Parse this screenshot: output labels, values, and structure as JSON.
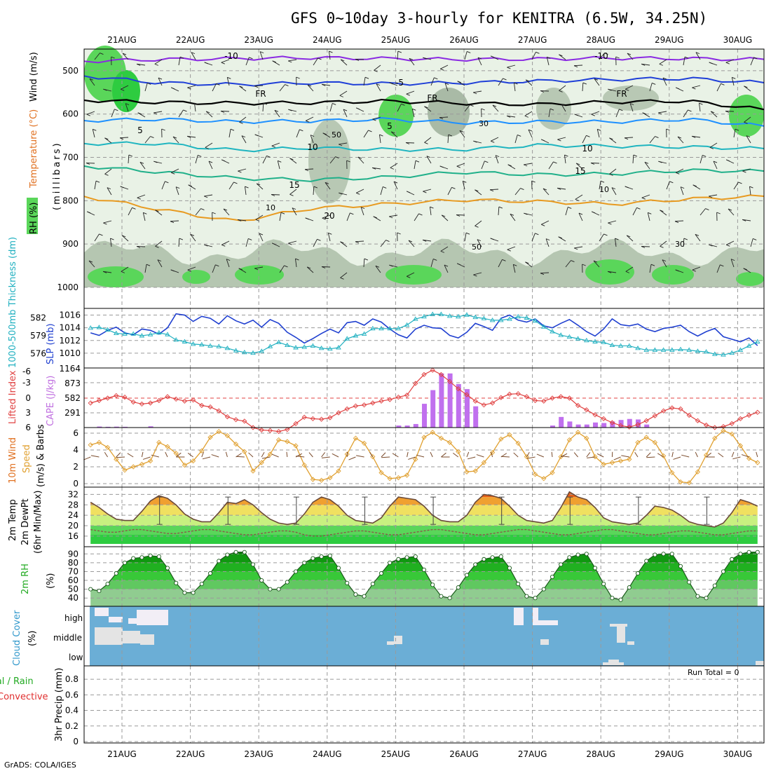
{
  "title": "GFS 0~10day 3-hourly for KENITRA (6.5W, 34.25N)",
  "credit": "GrADS: COLA/IGES",
  "chart_data": {
    "type": "meteogram",
    "x_labels": [
      "21AUG",
      "22AUG",
      "23AUG",
      "24AUG",
      "25AUG",
      "26AUG",
      "27AUG",
      "28AUG",
      "29AUG",
      "30AUG"
    ],
    "panels": [
      {
        "id": "upper-air",
        "ylabel_lines": [
          {
            "text": "Wind (m/s)",
            "color": "#000000"
          },
          {
            "text": "Temperature (°C)",
            "color": "#e07020"
          },
          {
            "text": "(millibars)",
            "color": "#000000"
          }
        ],
        "rh_legend": "RH (%)",
        "y_ticks": [
          500,
          600,
          700,
          800,
          900,
          1000
        ],
        "ylim": [
          1000,
          450
        ],
        "isotherm_labels": [
          "-10",
          "-5",
          "FR",
          "5",
          "10",
          "15",
          "20",
          "30",
          "50",
          "10"
        ],
        "isotherms": [
          {
            "label": "-10",
            "color": "#8a2be2",
            "levels": [
              478,
              474,
              472,
              470,
              472,
              474,
              473,
              471,
              472,
              474
            ]
          },
          {
            "label": "-5",
            "color": "#1f3fd8",
            "levels": [
              512,
              528,
              532,
              528,
              530,
              528,
              524,
              520,
              518,
              528
            ]
          },
          {
            "label": "FR",
            "color": "#000000",
            "levels": [
              568,
              573,
              575,
              574,
              570,
              575,
              578,
              572,
              570,
              590
            ]
          },
          {
            "label": "5",
            "color": "#1e90ff",
            "levels": [
              615,
              612,
              618,
              616,
              612,
              620,
              618,
              618,
              612,
              628
            ]
          },
          {
            "label": "10",
            "color": "#1fb5c0",
            "levels": [
              668,
              668,
              684,
              678,
              682,
              682,
              672,
              674,
              676,
              680
            ]
          },
          {
            "label": "15",
            "color": "#20b08a",
            "levels": [
              720,
              734,
              748,
              752,
              746,
              734,
              740,
              738,
              730,
              732
            ]
          },
          {
            "label": "20",
            "color": "#e89a20",
            "levels": [
              790,
              820,
              848,
              818,
              808,
              798,
              802,
              808,
              796,
              790
            ]
          }
        ]
      },
      {
        "id": "slp-thickness",
        "ylabel_left": "1000-500mb Thickness (dm)",
        "ylabel_right": "SLP (mb)",
        "left_ticks": [
          576,
          579,
          582
        ],
        "right_ticks": [
          1010,
          1012,
          1014,
          1016
        ],
        "slp_mb": [
          1013.2,
          1012.8,
          1013.6,
          1014.1,
          1013.2,
          1012.9,
          1013.8,
          1013.6,
          1013.0,
          1014.0,
          1016.2,
          1016.0,
          1015.0,
          1015.8,
          1015.5,
          1014.6,
          1015.9,
          1015.1,
          1014.6,
          1015.2,
          1014.1,
          1015.3,
          1014.7,
          1013.3,
          1012.5,
          1011.6,
          1012.3,
          1013.1,
          1013.8,
          1013.2,
          1014.8,
          1015.0,
          1014.4,
          1015.4,
          1014.9,
          1013.8,
          1012.9,
          1012.4,
          1013.8,
          1014.4,
          1014.0,
          1013.9,
          1012.8,
          1012.4,
          1013.3,
          1014.7,
          1014.2,
          1013.6,
          1015.5,
          1016.0,
          1015.2,
          1014.9,
          1015.4,
          1014.3,
          1014.0,
          1014.7,
          1015.3,
          1014.4,
          1013.4,
          1012.7,
          1013.8,
          1015.4,
          1014.5,
          1014.3,
          1014.6,
          1013.8,
          1013.4,
          1013.9,
          1014.1,
          1014.4,
          1013.4,
          1012.7,
          1013.4,
          1013.9,
          1012.6,
          1012.2,
          1011.8,
          1012.4,
          1011.2,
          1010.3,
          1011.4,
          1010.8,
          1009.7,
          1009.6
        ],
        "thickness_dm": [
          580.3,
          580.4,
          580.0,
          579.4,
          579.3,
          579.3,
          579.0,
          579.2,
          579.5,
          579.2,
          578.3,
          578.0,
          577.6,
          577.5,
          577.3,
          577.2,
          576.9,
          576.5,
          576.2,
          576.1,
          576.4,
          577.2,
          577.9,
          577.4,
          577.0,
          577.1,
          577.3,
          576.9,
          576.8,
          577.0,
          578.5,
          579.0,
          579.3,
          580.2,
          580.2,
          580.2,
          580.2,
          580.8,
          581.8,
          582.2,
          582.6,
          582.6,
          582.3,
          582.2,
          582.5,
          582.1,
          581.9,
          581.6,
          581.6,
          581.8,
          582.2,
          582.0,
          581.5,
          580.5,
          579.7,
          579.1,
          578.8,
          578.5,
          578.2,
          578.0,
          577.9,
          577.4,
          577.3,
          577.3,
          576.9,
          576.6,
          576.6,
          576.6,
          576.6,
          576.7,
          576.6,
          576.4,
          576.3,
          575.9,
          575.8,
          576.1,
          576.6,
          577.3,
          578.0,
          578.4,
          578.3,
          578.1,
          578.0,
          578.0
        ]
      },
      {
        "id": "li-cape",
        "ylabel_left": "Lifted Index",
        "ylabel_right": "CAPE (J/kg)",
        "left_ticks": [
          "-6",
          "-3",
          "0",
          "3",
          "6"
        ],
        "right_ticks": [
          291,
          582,
          873,
          1164
        ],
        "lifted_index": [
          1,
          0.5,
          0,
          -0.5,
          -0.2,
          0.8,
          1.2,
          1.0,
          0.5,
          -0.3,
          0.2,
          0.6,
          0.4,
          1.5,
          1.8,
          2.6,
          3.8,
          4.4,
          4.7,
          6,
          6.5,
          6.6,
          6.8,
          6.4,
          5.2,
          3.9,
          4.2,
          4.3,
          4.0,
          3.0,
          2.2,
          1.6,
          1.4,
          1.0,
          0.6,
          0.3,
          -0.2,
          -0.6,
          -3.0,
          -4.8,
          -5.7,
          -4.8,
          -3.4,
          -1.9,
          -0.7,
          0.6,
          1.4,
          1.0,
          -0.1,
          -0.8,
          -0.9,
          -0.3,
          0.5,
          0.6,
          0.0,
          -0.3,
          0.0,
          1.5,
          2.4,
          3.4,
          4.2,
          5.0,
          5.6,
          5.9,
          5.4,
          4.6,
          3.6,
          2.6,
          2.0,
          2.2,
          3.5,
          4.6,
          5.5,
          6.0,
          5.8,
          5.2,
          4.2,
          3.5,
          2.9,
          2.6,
          2.2,
          1.7,
          0.6,
          -0.2
        ],
        "cape_jkg": [
          0,
          20,
          15,
          18,
          15,
          0,
          0,
          25,
          0,
          0,
          0,
          0,
          0,
          0,
          0,
          0,
          0,
          0,
          0,
          0,
          0,
          0,
          0,
          0,
          0,
          0,
          0,
          0,
          0,
          0,
          0,
          0,
          0,
          0,
          0,
          0,
          40,
          40,
          70,
          470,
          740,
          1070,
          1070,
          860,
          760,
          420,
          0,
          0,
          0,
          0,
          0,
          0,
          0,
          0,
          40,
          210,
          120,
          60,
          60,
          100,
          90,
          120,
          150,
          170,
          160,
          60,
          0,
          0,
          0,
          0,
          0,
          0,
          0,
          0,
          0,
          0,
          0,
          0,
          0,
          0,
          0,
          0,
          30,
          60
        ]
      },
      {
        "id": "wind10m",
        "ylabel_lines": [
          {
            "text": "10m Wind",
            "color": "#e07020"
          },
          {
            "text": "Speed",
            "color": "#e0a030"
          },
          {
            "text": "(m/s) & Barbs",
            "color": "#000000"
          }
        ],
        "y_ticks": [
          0,
          2,
          4,
          6
        ],
        "speed_ms": [
          4.6,
          4.9,
          4.3,
          2.9,
          1.6,
          2.0,
          2.3,
          2.7,
          4.9,
          4.4,
          3.6,
          2.2,
          2.7,
          3.9,
          5.5,
          6.2,
          5.7,
          4.7,
          3.8,
          1.5,
          2.5,
          3.5,
          5.2,
          5.0,
          4.5,
          2.2,
          0.5,
          0.4,
          0.7,
          1.5,
          3.5,
          5.4,
          4.8,
          3.2,
          1.3,
          0.6,
          0.7,
          1.0,
          2.9,
          5.5,
          6.1,
          5.4,
          4.9,
          3.8,
          1.4,
          1.5,
          2.5,
          3.7,
          5.3,
          5.8,
          4.8,
          3.2,
          1.1,
          0.6,
          1.3,
          3.2,
          5.2,
          6.1,
          5.4,
          3.2,
          2.3,
          2.5,
          2.7,
          2.9,
          4.9,
          5.5,
          4.9,
          3.3,
          1.3,
          0.2,
          0.1,
          1.4,
          3.4,
          5.4,
          6.3,
          5.9,
          4.5,
          3.0,
          2.5,
          2.3,
          1.6
        ]
      },
      {
        "id": "temp2m",
        "ylabel_lines": [
          {
            "text": "2m Temp",
            "color": "#000000"
          },
          {
            "text": "2m DewPt",
            "color": "#000000"
          },
          {
            "text": "(6hr Min/Max)",
            "color": "#000000"
          }
        ],
        "y_ticks": [
          16,
          20,
          24,
          28,
          32
        ],
        "temp_c": [
          29.0,
          27.0,
          24.5,
          22.5,
          22.0,
          22.0,
          25.5,
          29.5,
          31.5,
          30.5,
          28.0,
          24.5,
          22.5,
          21.5,
          21.5,
          25.0,
          29.0,
          28.5,
          30.0,
          28.0,
          25.0,
          22.5,
          21.0,
          20.5,
          21.0,
          24.5,
          29.0,
          31.0,
          30.0,
          27.5,
          24.0,
          22.0,
          21.5,
          21.0,
          23.0,
          27.5,
          31.0,
          30.5,
          30.0,
          27.5,
          24.0,
          22.0,
          21.5,
          21.5,
          24.0,
          29.0,
          32.0,
          31.5,
          30.5,
          27.5,
          24.0,
          22.0,
          21.5,
          21.0,
          22.0,
          27.0,
          33.0,
          31.0,
          30.0,
          27.0,
          23.0,
          21.5,
          21.0,
          20.5,
          21.0,
          24.0,
          27.5,
          27.0,
          26.0,
          24.0,
          21.5,
          20.5,
          20.0,
          19.5,
          21.0,
          25.0,
          30.0,
          29.0,
          27.5,
          25.0,
          22.0,
          21.0,
          20.5
        ],
        "dewpt_c": [
          18.5,
          18.0,
          17.5,
          17.5,
          18.0,
          18.5,
          18.5,
          18.0,
          17.5,
          17.0,
          17.0,
          17.5,
          18.0,
          18.5,
          18.5,
          18.0,
          17.5,
          17.0,
          16.5,
          16.5,
          17.0,
          17.5,
          18.0,
          18.0,
          17.5,
          16.5,
          16.0,
          16.0,
          16.5,
          17.0,
          17.5,
          18.0,
          18.0,
          17.5,
          17.0,
          16.5,
          16.5,
          17.0,
          17.5,
          18.0,
          18.5,
          18.5,
          18.0,
          17.5,
          17.0,
          16.5,
          16.5,
          17.0,
          17.5,
          18.0,
          18.5,
          18.5,
          18.0,
          17.5,
          17.0,
          16.5,
          16.5,
          17.0,
          17.5,
          18.0,
          18.5,
          18.5,
          18.0,
          17.5,
          17.0,
          16.5,
          16.5,
          17.0,
          17.5,
          18.0,
          18.0,
          17.5,
          17.0,
          16.5,
          16.5,
          17.0,
          17.5,
          18.0,
          18.0,
          17.5,
          17.5
        ]
      },
      {
        "id": "rh2m",
        "ylabel_left": "2m RH",
        "ylabel_unit": "(%)",
        "y_ticks": [
          40,
          50,
          60,
          70,
          80,
          90
        ],
        "rh_pct": [
          50,
          48,
          56,
          68,
          80,
          85,
          86,
          88,
          87,
          74,
          57,
          46,
          46,
          56,
          68,
          82,
          89,
          92,
          92,
          78,
          60,
          50,
          50,
          58,
          70,
          80,
          85,
          87,
          88,
          74,
          57,
          44,
          42,
          56,
          68,
          80,
          84,
          86,
          87,
          72,
          55,
          42,
          40,
          52,
          66,
          78,
          84,
          86,
          87,
          74,
          56,
          42,
          40,
          50,
          64,
          78,
          86,
          89,
          90,
          74,
          56,
          40,
          38,
          52,
          68,
          82,
          89,
          90,
          90,
          76,
          58,
          42,
          40,
          54,
          70,
          84,
          90,
          92,
          92,
          80,
          60,
          44,
          44,
          56,
          72,
          84,
          88,
          90
        ]
      },
      {
        "id": "cloud-cover",
        "ylabel_left": "Cloud Cover",
        "ylabel_unit": "(%)",
        "layers": [
          "high",
          "middle",
          "low"
        ]
      },
      {
        "id": "precip",
        "ylabel_left": "3hr Precip (mm)",
        "legend_total_rain": "Total / Rain",
        "legend_convective": "Convective",
        "y_ticks": [
          "0",
          "0.2",
          "0.4",
          "0.6",
          "0.8"
        ],
        "run_total_label": "Run Total = 0",
        "values_mm": []
      }
    ]
  }
}
